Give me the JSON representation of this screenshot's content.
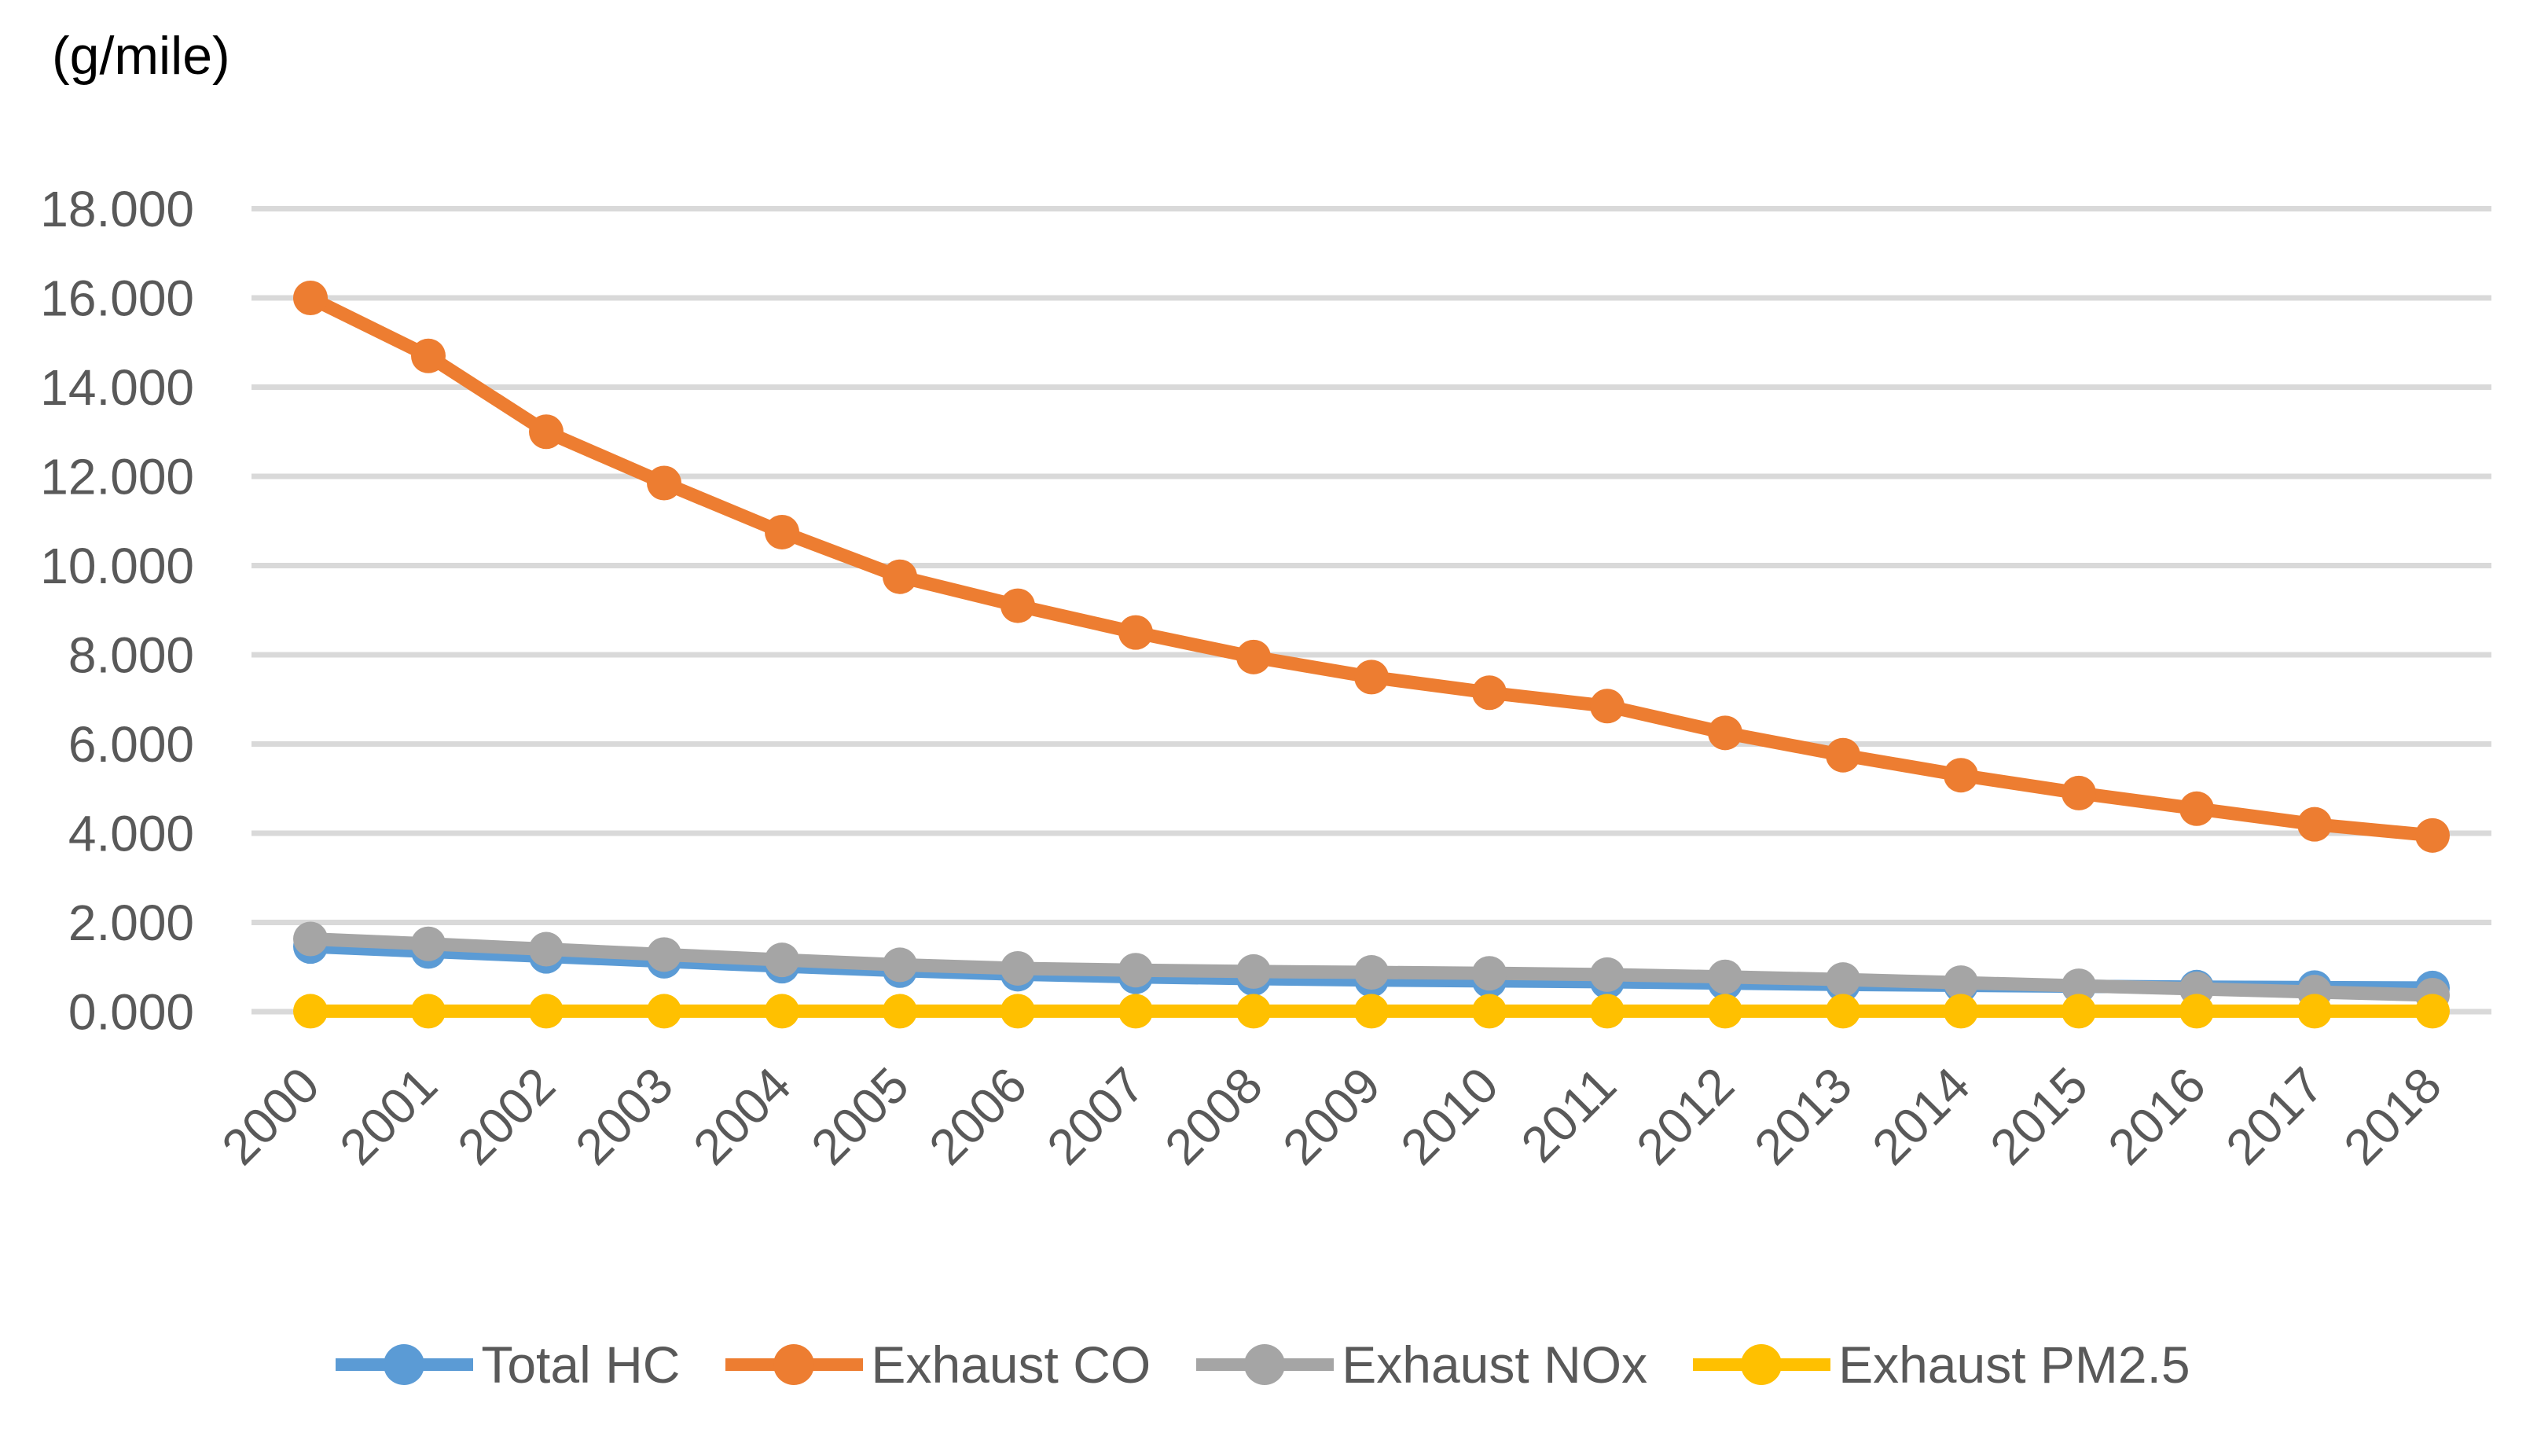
{
  "chart_data": {
    "type": "line",
    "title": "(g/mile)",
    "categories": [
      "2000",
      "2001",
      "2002",
      "2003",
      "2004",
      "2005",
      "2006",
      "2007",
      "2008",
      "2009",
      "2010",
      "2011",
      "2012",
      "2013",
      "2014",
      "2015",
      "2016",
      "2017",
      "2018"
    ],
    "series": [
      {
        "name": "Total HC",
        "color": "#5B9BD5",
        "values": [
          1.46,
          1.35,
          1.24,
          1.13,
          1.02,
          0.92,
          0.84,
          0.78,
          0.74,
          0.71,
          0.69,
          0.67,
          0.64,
          0.61,
          0.59,
          0.57,
          0.55,
          0.54,
          0.53
        ]
      },
      {
        "name": "Exhaust CO",
        "color": "#ED7D31",
        "values": [
          16.0,
          14.7,
          13.0,
          11.85,
          10.75,
          9.75,
          9.1,
          8.5,
          7.95,
          7.5,
          7.15,
          6.85,
          6.25,
          5.75,
          5.3,
          4.9,
          4.55,
          4.2,
          3.95
        ]
      },
      {
        "name": "Exhaust NOx",
        "color": "#A5A5A5",
        "values": [
          1.63,
          1.52,
          1.4,
          1.28,
          1.16,
          1.05,
          0.97,
          0.93,
          0.9,
          0.88,
          0.86,
          0.83,
          0.78,
          0.72,
          0.65,
          0.58,
          0.51,
          0.44,
          0.37
        ]
      },
      {
        "name": "Exhaust PM2.5",
        "color": "#FFC000",
        "values": [
          0.01,
          0.01,
          0.01,
          0.01,
          0.01,
          0.01,
          0.01,
          0.01,
          0.01,
          0.01,
          0.01,
          0.01,
          0.01,
          0.01,
          0.01,
          0.01,
          0.01,
          0.01,
          0.01
        ]
      }
    ],
    "ylim": [
      0,
      18
    ],
    "ytick_step": 2,
    "ytick_labels": [
      "0.000",
      "2.000",
      "4.000",
      "6.000",
      "8.000",
      "10.000",
      "12.000",
      "14.000",
      "16.000",
      "18.000"
    ],
    "xlabel": "",
    "ylabel": "(g/mile)",
    "grid": true,
    "legend_position": "bottom"
  },
  "colors": {
    "background": "#FFFFFF",
    "gridline": "#D9D9D9",
    "tick_text": "#595959",
    "title_text": "#000000"
  }
}
